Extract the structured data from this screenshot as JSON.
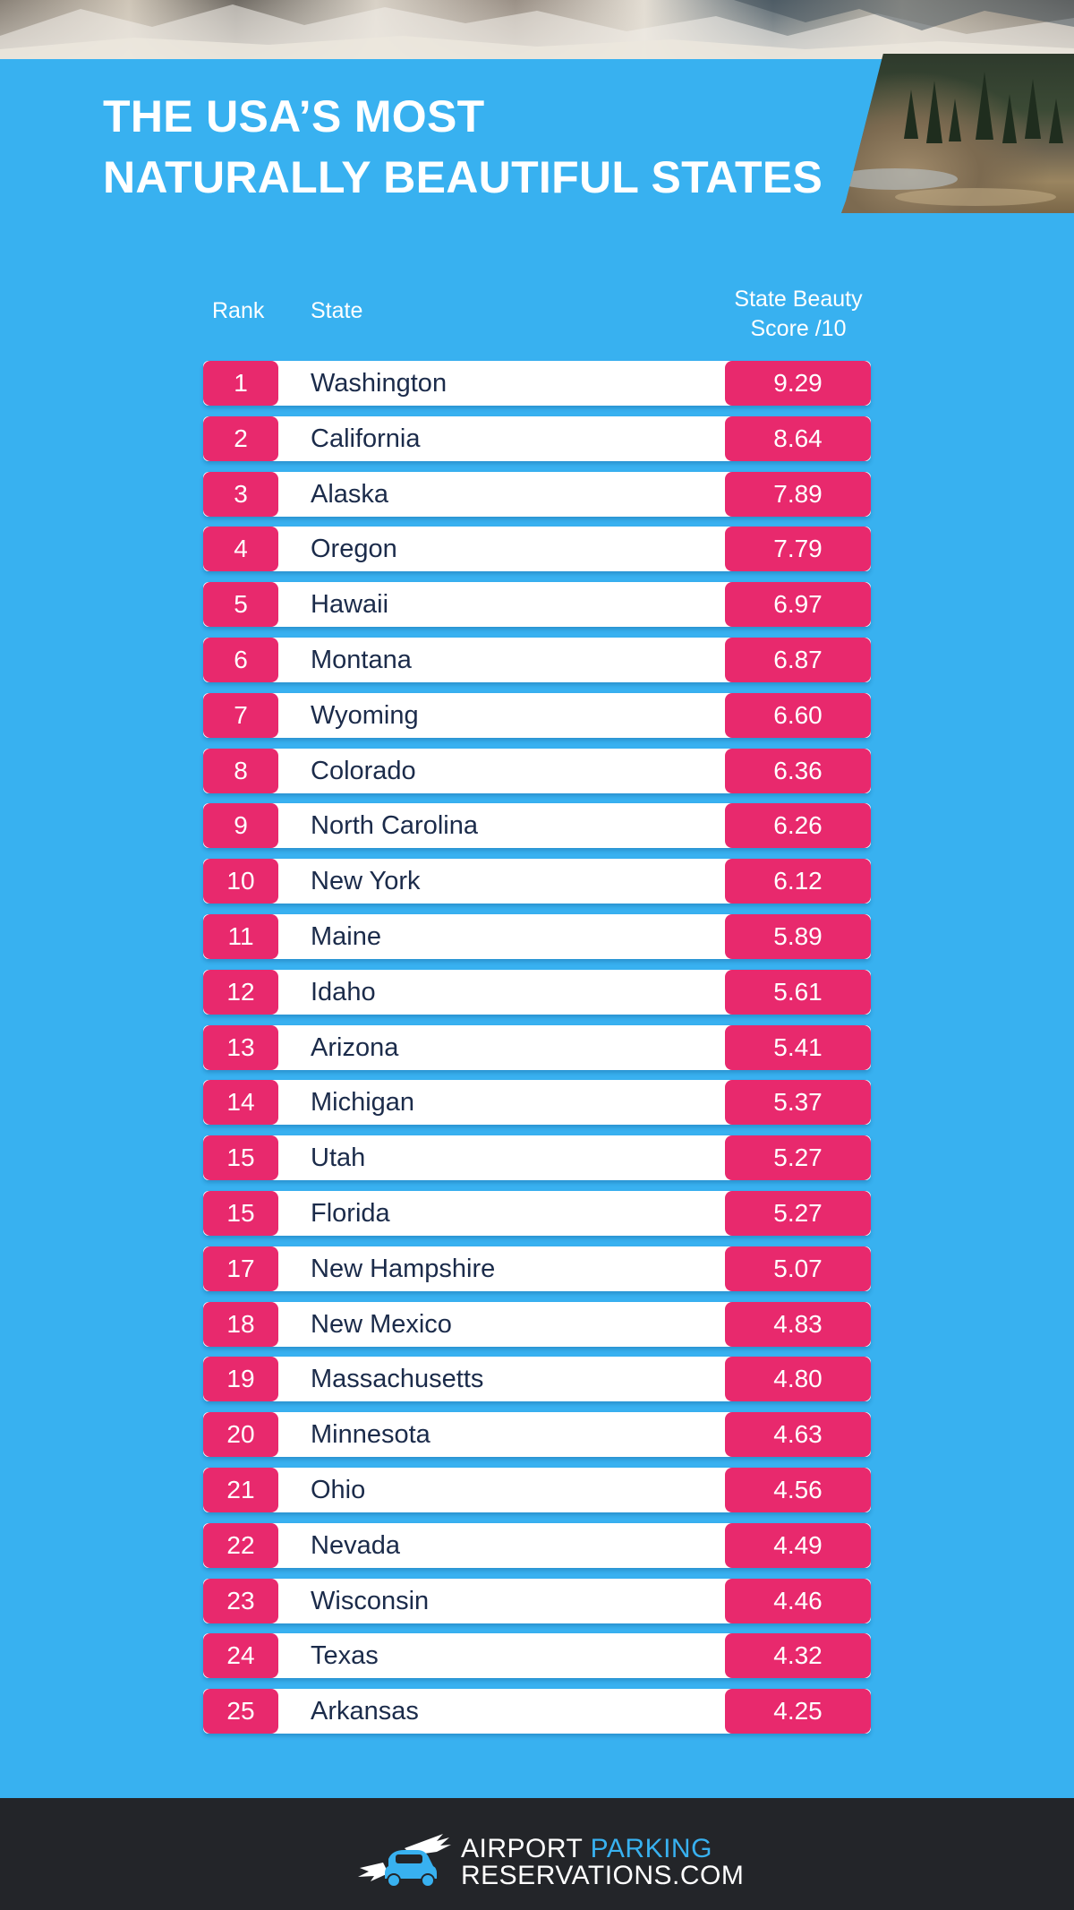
{
  "title": {
    "line1": "THE USA’S MOST",
    "line2": "NATURALLY BEAUTIFUL STATES"
  },
  "table": {
    "headers": {
      "rank": "Rank",
      "state": "State",
      "score_line1": "State Beauty",
      "score_line2": "Score /10"
    },
    "rows": [
      {
        "rank": "1",
        "state": "Washington",
        "score": "9.29"
      },
      {
        "rank": "2",
        "state": "California",
        "score": "8.64"
      },
      {
        "rank": "3",
        "state": "Alaska",
        "score": "7.89"
      },
      {
        "rank": "4",
        "state": "Oregon",
        "score": "7.79"
      },
      {
        "rank": "5",
        "state": "Hawaii",
        "score": "6.97"
      },
      {
        "rank": "6",
        "state": "Montana",
        "score": "6.87"
      },
      {
        "rank": "7",
        "state": "Wyoming",
        "score": "6.60"
      },
      {
        "rank": "8",
        "state": "Colorado",
        "score": "6.36"
      },
      {
        "rank": "9",
        "state": "North Carolina",
        "score": "6.26"
      },
      {
        "rank": "10",
        "state": "New York",
        "score": "6.12"
      },
      {
        "rank": "11",
        "state": "Maine",
        "score": "5.89"
      },
      {
        "rank": "12",
        "state": "Idaho",
        "score": "5.61"
      },
      {
        "rank": "13",
        "state": "Arizona",
        "score": "5.41"
      },
      {
        "rank": "14",
        "state": "Michigan",
        "score": "5.37"
      },
      {
        "rank": "15",
        "state": "Utah",
        "score": "5.27"
      },
      {
        "rank": "15",
        "state": "Florida",
        "score": "5.27"
      },
      {
        "rank": "17",
        "state": "New Hampshire",
        "score": "5.07"
      },
      {
        "rank": "18",
        "state": "New Mexico",
        "score": "4.83"
      },
      {
        "rank": "19",
        "state": "Massachusetts",
        "score": "4.80"
      },
      {
        "rank": "20",
        "state": "Minnesota",
        "score": "4.63"
      },
      {
        "rank": "21",
        "state": "Ohio",
        "score": "4.56"
      },
      {
        "rank": "22",
        "state": "Nevada",
        "score": "4.49"
      },
      {
        "rank": "23",
        "state": "Wisconsin",
        "score": "4.46"
      },
      {
        "rank": "24",
        "state": "Texas",
        "score": "4.32"
      },
      {
        "rank": "25",
        "state": "Arkansas",
        "score": "4.25"
      }
    ]
  },
  "footer": {
    "logo_line1_a": "AIRPORT ",
    "logo_line1_b": "PARKING",
    "logo_line2": "RESERVATIONS.COM",
    "logo_icon": "winged-car-icon"
  },
  "colors": {
    "background": "#38b1f0",
    "accent_pink": "#e8296d",
    "text_dark": "#1b2b4a",
    "footer": "#232529"
  }
}
